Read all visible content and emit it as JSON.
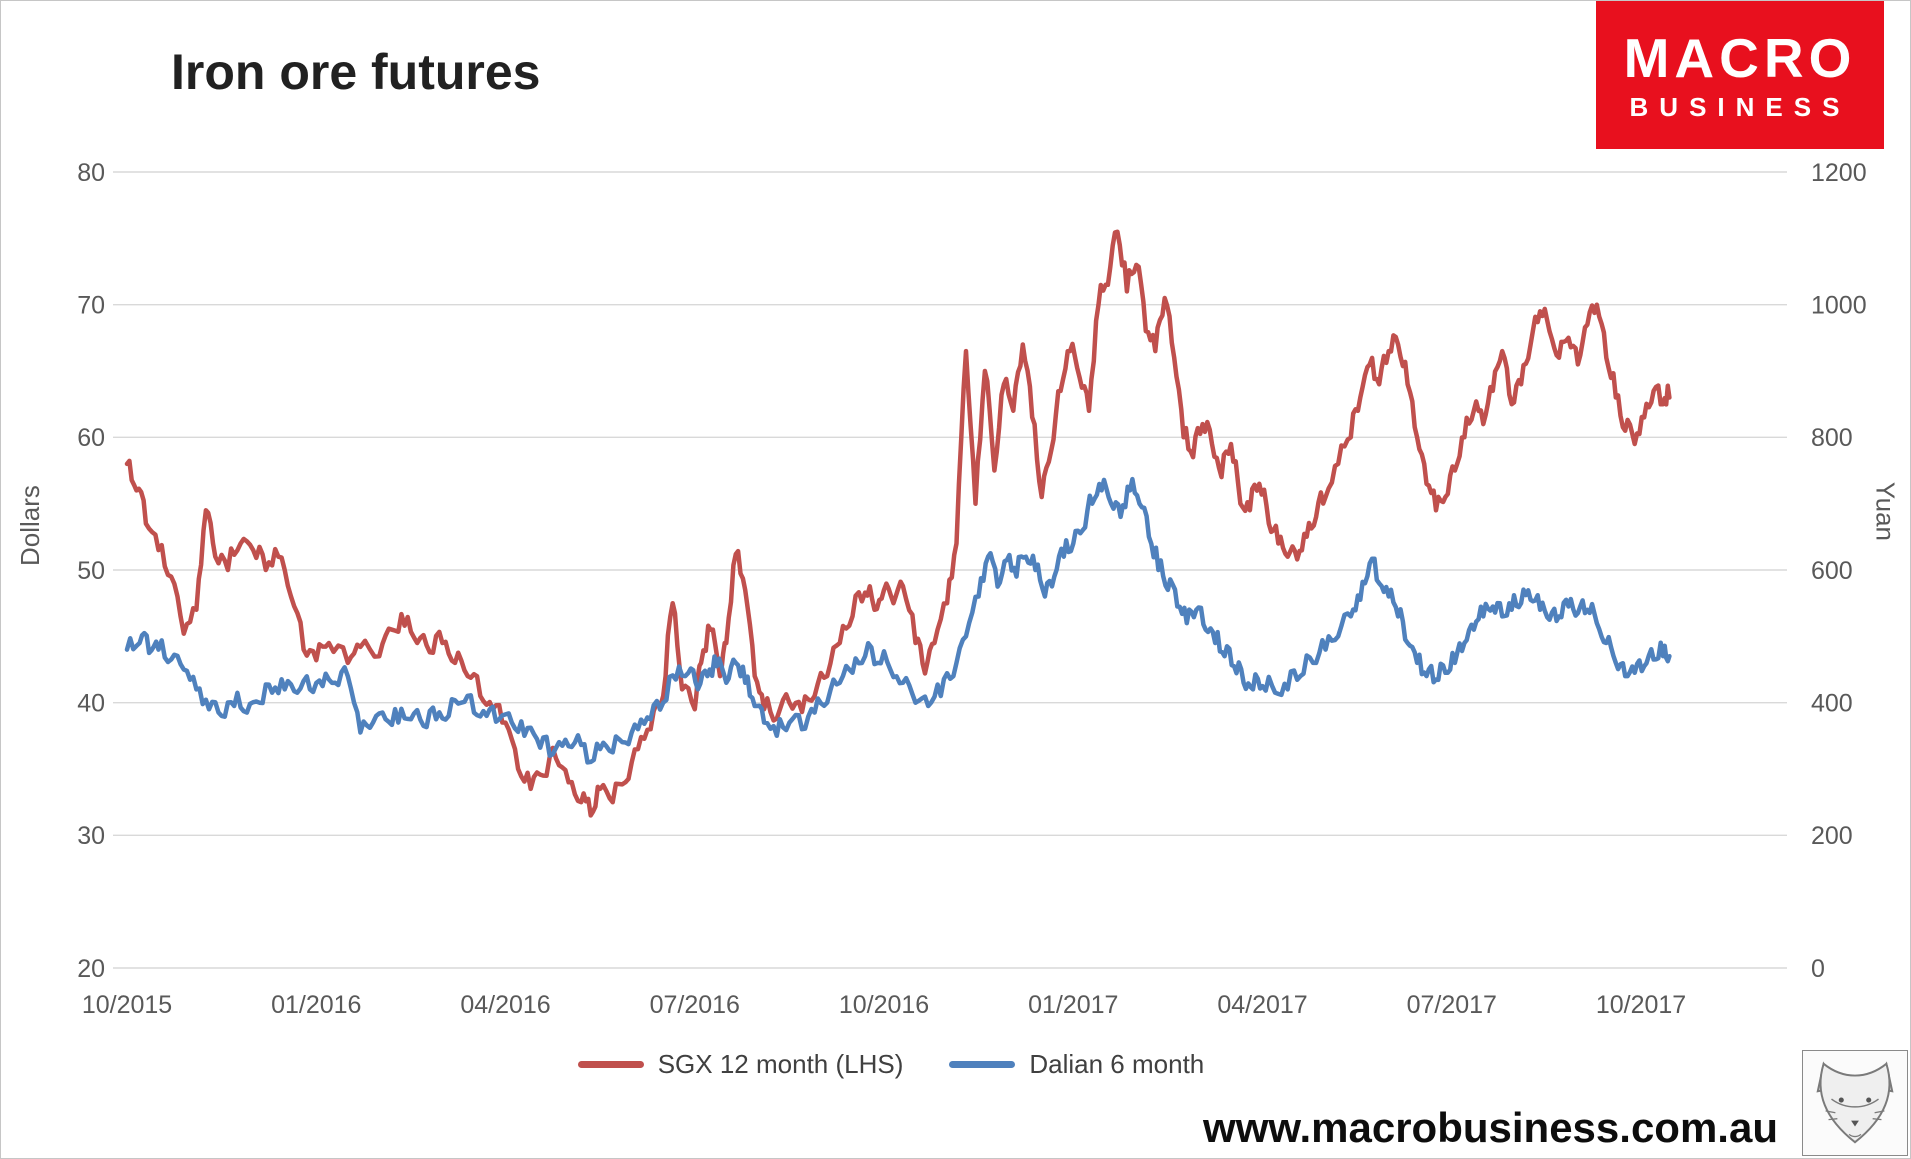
{
  "title": "Iron ore futures",
  "logo": {
    "line1": "MACRO",
    "line2": "BUSINESS",
    "bg_color": "#e8101e"
  },
  "footer": {
    "website": "www.macrobusiness.com.au"
  },
  "colors": {
    "red_series": "#C0504D",
    "blue_series": "#4F81BD",
    "gridline": "#d9d9d9",
    "tick_text": "#595959"
  },
  "chart_data": {
    "type": "line",
    "title": "Iron ore futures",
    "grid": "horizontal",
    "legend_position": "bottom",
    "left_axis": {
      "label": "Dollars",
      "min": 20,
      "max": 80,
      "ticks": [
        20,
        30,
        40,
        50,
        60,
        70,
        80
      ]
    },
    "right_axis": {
      "label": "Yuan",
      "min": 0,
      "max": 1200,
      "ticks": [
        0,
        200,
        400,
        600,
        800,
        1000,
        1200
      ]
    },
    "x_axis": {
      "tick_labels": [
        "10/2015",
        "01/2016",
        "04/2016",
        "07/2016",
        "10/2016",
        "01/2017",
        "04/2017",
        "07/2017",
        "10/2017"
      ],
      "tick_positions_months": [
        0,
        3,
        6,
        9,
        12,
        15,
        18,
        21,
        24
      ]
    },
    "legend": [
      {
        "name": "SGX 12 month (LHS)",
        "color": "#C0504D"
      },
      {
        "name": "Dalian 6 month",
        "color": "#4F81BD"
      }
    ],
    "series": [
      {
        "name": "SGX 12 month (LHS)",
        "axis": "left",
        "unit": "Dollars",
        "color": "#C0504D",
        "x": [
          0.0,
          0.15,
          0.3,
          0.5,
          0.7,
          0.9,
          1.1,
          1.25,
          1.4,
          1.6,
          1.8,
          2.0,
          2.2,
          2.4,
          2.6,
          2.8,
          3.0,
          3.2,
          3.5,
          3.7,
          4.0,
          4.2,
          4.4,
          4.6,
          4.8,
          5.0,
          5.2,
          5.4,
          5.6,
          5.8,
          6.0,
          6.2,
          6.4,
          6.6,
          6.8,
          7.0,
          7.2,
          7.35,
          7.5,
          7.7,
          7.9,
          8.1,
          8.3,
          8.5,
          8.65,
          8.8,
          9.0,
          9.1,
          9.25,
          9.4,
          9.5,
          9.65,
          9.8,
          9.95,
          10.1,
          10.3,
          10.5,
          10.7,
          10.9,
          11.1,
          11.3,
          11.5,
          11.7,
          11.85,
          12.0,
          12.15,
          12.3,
          12.5,
          12.65,
          12.8,
          13.0,
          13.15,
          13.3,
          13.45,
          13.6,
          13.75,
          13.9,
          14.05,
          14.2,
          14.35,
          14.5,
          14.65,
          14.8,
          14.95,
          15.1,
          15.25,
          15.4,
          15.55,
          15.7,
          15.85,
          16.0,
          16.15,
          16.3,
          16.45,
          16.6,
          16.75,
          16.9,
          17.05,
          17.2,
          17.35,
          17.5,
          17.65,
          17.8,
          17.95,
          18.1,
          18.25,
          18.4,
          18.55,
          18.7,
          18.85,
          19.0,
          19.2,
          19.4,
          19.55,
          19.7,
          19.85,
          20.0,
          20.15,
          20.3,
          20.45,
          20.6,
          20.75,
          20.9,
          21.05,
          21.2,
          21.35,
          21.5,
          21.65,
          21.8,
          21.95,
          22.1,
          22.25,
          22.4,
          22.55,
          22.7,
          22.85,
          23.0,
          23.15,
          23.3,
          23.45,
          23.6,
          23.75,
          23.9,
          24.05,
          24.2,
          24.35,
          24.45
        ],
        "y": [
          58,
          56,
          53.5,
          51.5,
          49.5,
          45.2,
          47,
          54.5,
          51,
          50,
          52,
          51.5,
          50,
          51,
          48,
          44,
          43.2,
          44.5,
          43,
          44.2,
          43.5,
          45.5,
          45.8,
          44.5,
          43.8,
          44.5,
          43,
          42,
          40.5,
          39.5,
          38.5,
          35,
          33.5,
          34.5,
          35.8,
          34,
          32.5,
          31.5,
          33.5,
          32.5,
          34,
          36.5,
          38,
          40.5,
          47.5,
          41,
          39.5,
          43,
          45.5,
          42,
          44.5,
          51.2,
          48.5,
          42,
          39.5,
          38.8,
          40,
          39.3,
          40.5,
          42,
          44.5,
          46.5,
          48.3,
          47,
          48.5,
          47.5,
          48.8,
          44.5,
          42.2,
          44.5,
          47.5,
          52,
          66.5,
          55,
          65,
          57.5,
          64,
          62,
          67,
          61.5,
          55.5,
          59,
          63.5,
          66.5,
          64.5,
          62,
          70,
          71.5,
          75.5,
          71,
          73,
          68,
          66.5,
          70.5,
          66,
          60,
          58.5,
          61,
          59.5,
          57,
          59.5,
          55,
          54.5,
          56.5,
          53.5,
          52,
          51,
          50.8,
          52.5,
          54,
          55.5,
          58,
          60,
          63,
          65.5,
          64,
          66.5,
          67,
          64,
          60,
          56.5,
          54.5,
          55.5,
          57.5,
          60,
          62,
          61,
          63.5,
          66.5,
          62.5,
          64,
          67,
          69.5,
          68,
          66,
          67.5,
          65.5,
          68.5,
          70,
          66,
          63,
          60.5,
          59.5,
          61.5,
          63.5,
          62.5,
          63
        ]
      },
      {
        "name": "Dalian 6 month",
        "axis": "right",
        "unit": "Yuan",
        "color": "#4F81BD",
        "x": [
          0.0,
          0.2,
          0.35,
          0.5,
          0.7,
          0.9,
          1.1,
          1.3,
          1.5,
          1.7,
          1.9,
          2.1,
          2.3,
          2.5,
          2.7,
          2.9,
          3.1,
          3.3,
          3.5,
          3.7,
          3.9,
          4.1,
          4.3,
          4.5,
          4.7,
          4.9,
          5.1,
          5.3,
          5.5,
          5.7,
          5.9,
          6.1,
          6.3,
          6.5,
          6.7,
          6.9,
          7.1,
          7.3,
          7.5,
          7.7,
          7.9,
          8.1,
          8.3,
          8.5,
          8.7,
          8.9,
          9.05,
          9.2,
          9.35,
          9.5,
          9.65,
          9.8,
          9.95,
          10.1,
          10.3,
          10.5,
          10.7,
          10.9,
          11.1,
          11.3,
          11.5,
          11.7,
          11.9,
          12.1,
          12.3,
          12.5,
          12.7,
          12.9,
          13.1,
          13.3,
          13.5,
          13.65,
          13.8,
          13.95,
          14.1,
          14.25,
          14.4,
          14.55,
          14.7,
          14.85,
          15.0,
          15.15,
          15.3,
          15.45,
          15.6,
          15.75,
          15.9,
          16.05,
          16.2,
          16.35,
          16.5,
          16.65,
          16.8,
          16.95,
          17.1,
          17.25,
          17.4,
          17.55,
          17.7,
          17.85,
          18.0,
          18.2,
          18.4,
          18.6,
          18.8,
          19.0,
          19.2,
          19.4,
          19.55,
          19.7,
          19.85,
          20.0,
          20.15,
          20.3,
          20.45,
          20.6,
          20.75,
          20.9,
          21.05,
          21.2,
          21.35,
          21.5,
          21.65,
          21.8,
          21.95,
          22.1,
          22.25,
          22.4,
          22.55,
          22.7,
          22.85,
          23.0,
          23.15,
          23.3,
          23.45,
          23.6,
          23.75,
          23.9,
          24.05,
          24.2,
          24.35,
          24.45
        ],
        "y": [
          480,
          490,
          475,
          480,
          465,
          450,
          420,
          390,
          380,
          395,
          385,
          400,
          415,
          420,
          415,
          420,
          425,
          430,
          440,
          355,
          370,
          375,
          370,
          375,
          365,
          375,
          380,
          400,
          385,
          380,
          375,
          370,
          350,
          345,
          320,
          335,
          340,
          310,
          330,
          325,
          340,
          360,
          375,
          400,
          435,
          445,
          420,
          440,
          455,
          430,
          460,
          430,
          395,
          370,
          350,
          370,
          360,
          385,
          400,
          430,
          445,
          470,
          460,
          450,
          430,
          400,
          395,
          410,
          440,
          500,
          560,
          620,
          575,
          615,
          590,
          620,
          600,
          560,
          590,
          620,
          640,
          660,
          700,
          720,
          700,
          680,
          720,
          700,
          650,
          600,
          570,
          545,
          520,
          540,
          510,
          490,
          470,
          455,
          430,
          420,
          425,
          415,
          420,
          440,
          460,
          480,
          500,
          530,
          555,
          610,
          580,
          560,
          530,
          490,
          460,
          440,
          435,
          445,
          460,
          490,
          510,
          530,
          545,
          530,
          540,
          550,
          555,
          540,
          525,
          530,
          545,
          535,
          540,
          520,
          490,
          460,
          440,
          445,
          455,
          465,
          470,
          470
        ]
      }
    ]
  }
}
